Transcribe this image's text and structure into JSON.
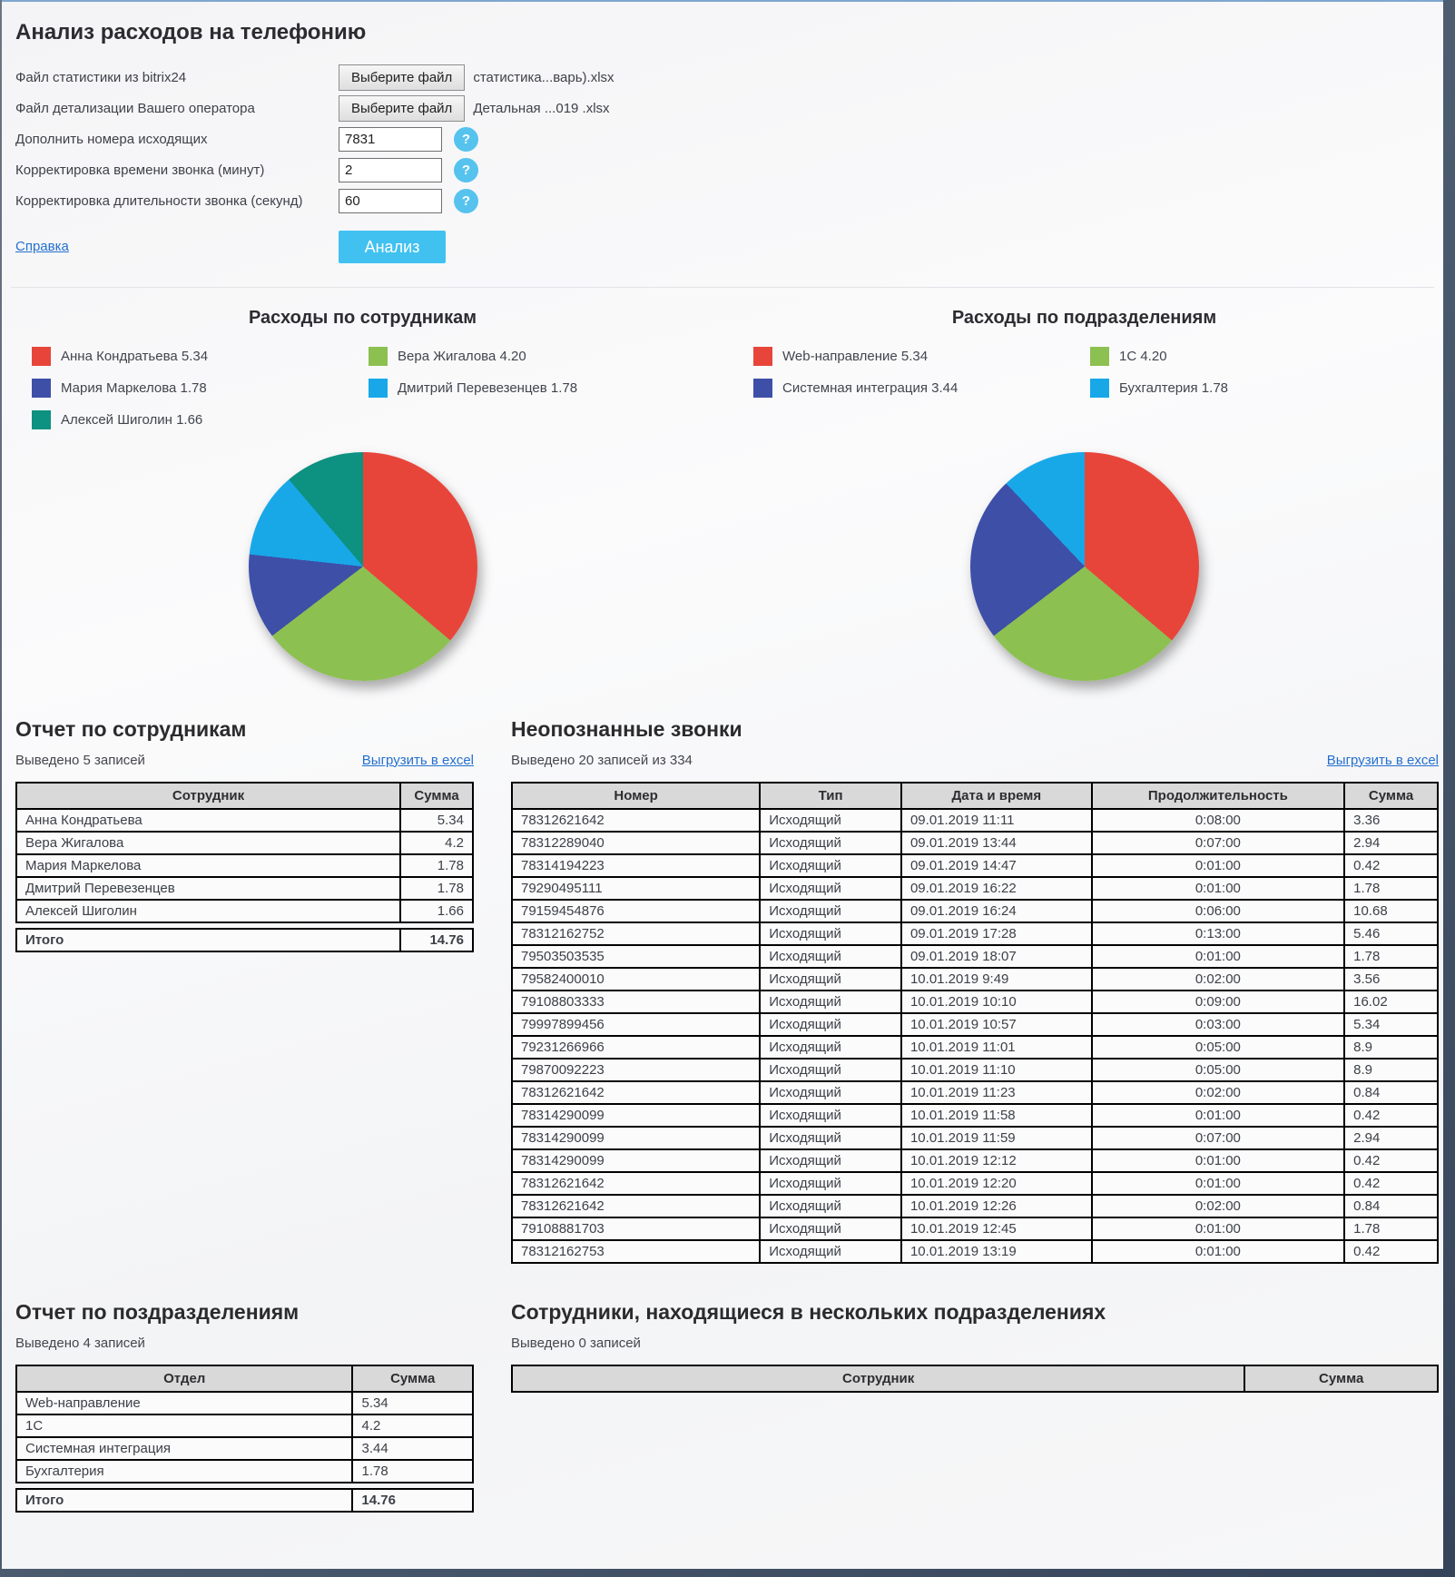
{
  "header": {
    "title": "Анализ расходов на телефонию"
  },
  "form": {
    "rows": [
      {
        "name": "stats-file",
        "label": "Файл статистики из bitrix24",
        "type": "file",
        "button_label": "Выберите файл",
        "filename": "статистика...варь).xlsx"
      },
      {
        "name": "operator-file",
        "label": "Файл детализации Вашего оператора",
        "type": "file",
        "button_label": "Выберите файл",
        "filename": "Детальная ...019 .xlsx"
      },
      {
        "name": "outgoing-numbers",
        "label": "Дополнить номера исходящих",
        "type": "text",
        "value": "7831",
        "help_label": "?"
      },
      {
        "name": "time-correction",
        "label": "Корректировка времени звонка (минут)",
        "type": "text",
        "value": "2",
        "help_label": "?"
      },
      {
        "name": "duration-correction",
        "label": "Корректировка длительности звонка (секунд)",
        "type": "text",
        "value": "60",
        "help_label": "?"
      }
    ],
    "help_link": "Справка",
    "submit_label": "Анализ"
  },
  "chart_data": [
    {
      "type": "pie",
      "title": "Расходы по сотрудникам",
      "direction": "clockwise",
      "start_angle_deg": 0,
      "legend_position": "top",
      "slices": [
        {
          "label": "Анна Кондратьева",
          "value": 5.34,
          "legend_text": "Анна Кондратьева 5.34",
          "color": "#e8453a"
        },
        {
          "label": "Вера Жигалова",
          "value": 4.2,
          "legend_text": "Вера Жигалова 4.20",
          "color": "#8cc051"
        },
        {
          "label": "Мария Маркелова",
          "value": 1.78,
          "legend_text": "Мария Маркелова 1.78",
          "color": "#3e4fa8"
        },
        {
          "label": "Дмитрий Перевезенцев",
          "value": 1.78,
          "legend_text": "Дмитрий Перевезенцев 1.78",
          "color": "#18a8e8"
        },
        {
          "label": "Алексей Шиголин",
          "value": 1.66,
          "legend_text": "Алексей Шиголин 1.66",
          "color": "#0d9180"
        }
      ]
    },
    {
      "type": "pie",
      "title": "Расходы по подразделениям",
      "direction": "clockwise",
      "start_angle_deg": 0,
      "legend_position": "top",
      "slices": [
        {
          "label": "Web-направление",
          "value": 5.34,
          "legend_text": "Web-направление 5.34",
          "color": "#e8453a"
        },
        {
          "label": "1С",
          "value": 4.2,
          "legend_text": "1С 4.20",
          "color": "#8cc051"
        },
        {
          "label": "Системная интеграция",
          "value": 3.44,
          "legend_text": "Системная интеграция 3.44",
          "color": "#3e4fa8"
        },
        {
          "label": "Бухгалтерия",
          "value": 1.78,
          "legend_text": "Бухгалтерия 1.78",
          "color": "#18a8e8"
        }
      ]
    }
  ],
  "employee_report": {
    "title": "Отчет по сотрудникам",
    "meta": "Выведено 5 записей",
    "export_label": "Выгрузить в excel",
    "headers": [
      "Сотрудник",
      "Сумма"
    ],
    "rows": [
      [
        "Анна Кондратьева",
        "5.34"
      ],
      [
        "Вера Жигалова",
        "4.2"
      ],
      [
        "Мария Маркелова",
        "1.78"
      ],
      [
        "Дмитрий Перевезенцев",
        "1.78"
      ],
      [
        "Алексей Шиголин",
        "1.66"
      ]
    ],
    "total": [
      "Итого",
      "14.76"
    ]
  },
  "unknown_calls": {
    "title": "Неопознанные звонки",
    "meta": "Выведено 20 записей из 334",
    "export_label": "Выгрузить в excel",
    "headers": [
      "Номер",
      "Тип",
      "Дата и время",
      "Продолжительность",
      "Сумма"
    ],
    "rows": [
      [
        "78312621642",
        "Исходящий",
        "09.01.2019 11:11",
        "0:08:00",
        "3.36"
      ],
      [
        "78312289040",
        "Исходящий",
        "09.01.2019 13:44",
        "0:07:00",
        "2.94"
      ],
      [
        "78314194223",
        "Исходящий",
        "09.01.2019 14:47",
        "0:01:00",
        "0.42"
      ],
      [
        "79290495111",
        "Исходящий",
        "09.01.2019 16:22",
        "0:01:00",
        "1.78"
      ],
      [
        "79159454876",
        "Исходящий",
        "09.01.2019 16:24",
        "0:06:00",
        "10.68"
      ],
      [
        "78312162752",
        "Исходящий",
        "09.01.2019 17:28",
        "0:13:00",
        "5.46"
      ],
      [
        "79503503535",
        "Исходящий",
        "09.01.2019 18:07",
        "0:01:00",
        "1.78"
      ],
      [
        "79582400010",
        "Исходящий",
        "10.01.2019 9:49",
        "0:02:00",
        "3.56"
      ],
      [
        "79108803333",
        "Исходящий",
        "10.01.2019 10:10",
        "0:09:00",
        "16.02"
      ],
      [
        "79997899456",
        "Исходящий",
        "10.01.2019 10:57",
        "0:03:00",
        "5.34"
      ],
      [
        "79231266966",
        "Исходящий",
        "10.01.2019 11:01",
        "0:05:00",
        "8.9"
      ],
      [
        "79870092223",
        "Исходящий",
        "10.01.2019 11:10",
        "0:05:00",
        "8.9"
      ],
      [
        "78312621642",
        "Исходящий",
        "10.01.2019 11:23",
        "0:02:00",
        "0.84"
      ],
      [
        "78314290099",
        "Исходящий",
        "10.01.2019 11:58",
        "0:01:00",
        "0.42"
      ],
      [
        "78314290099",
        "Исходящий",
        "10.01.2019 11:59",
        "0:07:00",
        "2.94"
      ],
      [
        "78314290099",
        "Исходящий",
        "10.01.2019 12:12",
        "0:01:00",
        "0.42"
      ],
      [
        "78312621642",
        "Исходящий",
        "10.01.2019 12:20",
        "0:01:00",
        "0.42"
      ],
      [
        "78312621642",
        "Исходящий",
        "10.01.2019 12:26",
        "0:02:00",
        "0.84"
      ],
      [
        "79108881703",
        "Исходящий",
        "10.01.2019 12:45",
        "0:01:00",
        "1.78"
      ],
      [
        "78312162753",
        "Исходящий",
        "10.01.2019 13:19",
        "0:01:00",
        "0.42"
      ]
    ]
  },
  "department_report": {
    "title": "Отчет по поздразделениям",
    "meta": "Выведено 4 записей",
    "headers": [
      "Отдел",
      "Сумма"
    ],
    "rows": [
      [
        "Web-направление",
        "5.34"
      ],
      [
        "1С",
        "4.2"
      ],
      [
        "Системная интеграция",
        "3.44"
      ],
      [
        "Бухгалтерия",
        "1.78"
      ]
    ],
    "total": [
      "Итого",
      "14.76"
    ]
  },
  "multi_department": {
    "title": "Сотрудники, находящиеся в нескольких подразделениях",
    "meta": "Выведено 0 записей",
    "headers": [
      "Сотрудник",
      "Сумма"
    ],
    "rows": []
  }
}
